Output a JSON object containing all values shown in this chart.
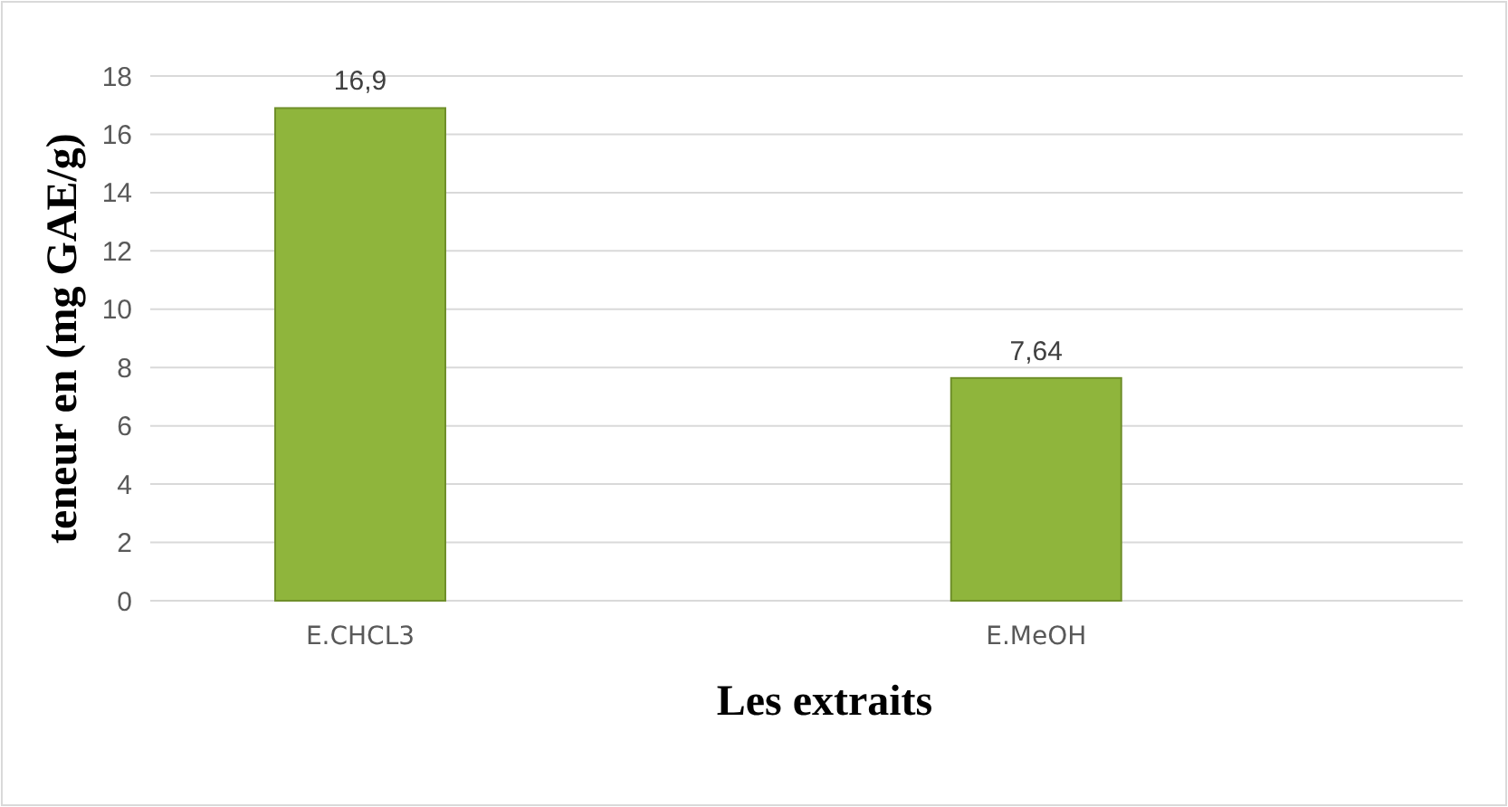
{
  "chart_data": {
    "type": "bar",
    "xlabel": "Les extraits",
    "ylabel": "teneur en (mg GAE/g)",
    "categories": [
      "E.CHCL3",
      "E.MeOH"
    ],
    "values": [
      16.9,
      7.64
    ],
    "color": "#8fb53c",
    "ylim": [
      0,
      18
    ],
    "yticks": [
      0,
      2,
      4,
      6,
      8,
      10,
      12,
      14,
      16,
      18
    ],
    "grid": "y",
    "value_labels": [
      "16,9",
      "7,64"
    ]
  }
}
